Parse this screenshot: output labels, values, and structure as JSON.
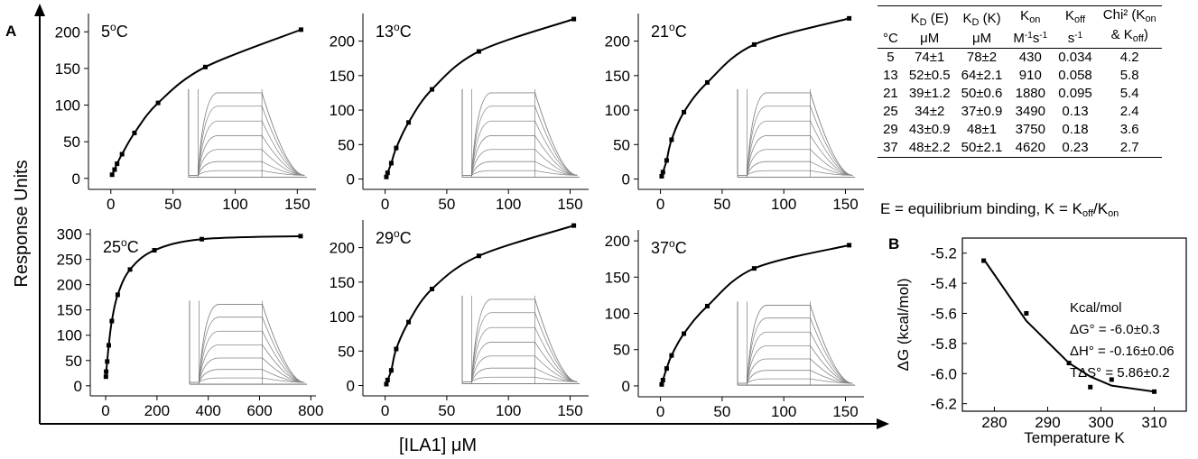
{
  "figure": {
    "panel_a_label": "A",
    "panel_b_label": "B",
    "y_axis_title": "Response Units",
    "x_axis_title": "[ILA1] μM"
  },
  "chart_data": [
    {
      "type": "scatter",
      "panel": "A",
      "label": "5°C",
      "temp_text": "5",
      "x": [
        1,
        3,
        5,
        9,
        19,
        38,
        76,
        153
      ],
      "y": [
        5,
        12,
        20,
        33,
        62,
        103,
        152,
        203
      ],
      "fit": "binding curve",
      "xticks": [
        0,
        50,
        100,
        150
      ],
      "yticks": [
        0,
        50,
        100,
        150,
        200
      ],
      "xlim": [
        -18,
        165
      ],
      "ylim": [
        -15,
        225
      ],
      "inset": "sensorgram"
    },
    {
      "type": "scatter",
      "panel": "A",
      "label": "13°C",
      "temp_text": "13",
      "x": [
        1,
        2,
        5,
        9,
        19,
        38,
        76,
        153
      ],
      "y": [
        3,
        9,
        23,
        45,
        82,
        130,
        185,
        232
      ],
      "fit": "binding curve",
      "xticks": [
        0,
        50,
        100,
        150
      ],
      "yticks": [
        0,
        50,
        100,
        150,
        200
      ],
      "xlim": [
        -18,
        165
      ],
      "ylim": [
        -15,
        240
      ],
      "inset": "sensorgram"
    },
    {
      "type": "scatter",
      "panel": "A",
      "label": "21°C",
      "temp_text": "21",
      "x": [
        1,
        2,
        5,
        9,
        19,
        38,
        76,
        153
      ],
      "y": [
        4,
        10,
        27,
        57,
        97,
        140,
        195,
        233
      ],
      "fit": "binding curve",
      "xticks": [
        0,
        50,
        100,
        150
      ],
      "yticks": [
        0,
        50,
        100,
        150,
        200
      ],
      "xlim": [
        -18,
        165
      ],
      "ylim": [
        -15,
        240
      ],
      "inset": "sensorgram"
    },
    {
      "type": "scatter",
      "panel": "A",
      "label": "25°C",
      "temp_text": "25",
      "x": [
        1,
        2,
        6,
        12,
        24,
        47,
        95,
        190,
        375,
        760
      ],
      "y": [
        18,
        28,
        48,
        80,
        128,
        180,
        230,
        268,
        290,
        296
      ],
      "fit": "binding curve",
      "xticks": [
        0,
        200,
        400,
        600,
        800
      ],
      "yticks": [
        0,
        50,
        100,
        150,
        200,
        250,
        300
      ],
      "xlim": [
        -60,
        820
      ],
      "ylim": [
        -20,
        310
      ],
      "inset": "sensorgram"
    },
    {
      "type": "scatter",
      "panel": "A",
      "label": "29°C",
      "temp_text": "29",
      "x": [
        1,
        2,
        5,
        9,
        19,
        38,
        76,
        153
      ],
      "y": [
        2,
        8,
        22,
        53,
        92,
        140,
        188,
        232
      ],
      "fit": "binding curve",
      "xticks": [
        0,
        50,
        100,
        150
      ],
      "yticks": [
        0,
        50,
        100,
        150,
        200
      ],
      "xlim": [
        -18,
        165
      ],
      "ylim": [
        -15,
        240
      ],
      "inset": "sensorgram"
    },
    {
      "type": "scatter",
      "panel": "A",
      "label": "37°C",
      "temp_text": "37",
      "x": [
        1,
        2,
        5,
        9,
        19,
        38,
        76,
        153
      ],
      "y": [
        2,
        8,
        24,
        42,
        72,
        110,
        162,
        194
      ],
      "fit": "binding curve",
      "xticks": [
        0,
        50,
        100,
        150
      ],
      "yticks": [
        0,
        50,
        100,
        150,
        200
      ],
      "xlim": [
        -18,
        165
      ],
      "ylim": [
        -15,
        215
      ],
      "inset": "sensorgram"
    },
    {
      "type": "scatter",
      "panel": "B",
      "x": [
        278,
        286,
        294,
        298,
        302,
        310
      ],
      "y": [
        -5.25,
        -5.6,
        -5.93,
        -6.09,
        -6.04,
        -6.12
      ],
      "fit_x": [
        278,
        286,
        294,
        298,
        302,
        310
      ],
      "fit_y": [
        -5.24,
        -5.65,
        -5.93,
        -6.02,
        -6.08,
        -6.12
      ],
      "xlabel": "Temperature K",
      "ylabel": "ΔG (kcal/mol)",
      "xticks": [
        280,
        290,
        300,
        310
      ],
      "yticks": [
        -5.2,
        -5.4,
        -5.6,
        -5.8,
        -6.0,
        -6.2
      ],
      "xlim": [
        274,
        316
      ],
      "ylim": [
        -6.25,
        -5.1
      ]
    }
  ],
  "thermo": {
    "title": "Kcal/mol",
    "dG": "ΔG° = -6.0±0.3",
    "dH": "ΔH° = -0.16±0.06",
    "TdS": "TΔS° = 5.86±0.2"
  },
  "table": {
    "headers": [
      {
        "top": "",
        "main": "°C",
        "sub": ""
      },
      {
        "top": "K",
        "topsub": "D",
        "topafter": " (E)",
        "main": "μM"
      },
      {
        "top": "K",
        "topsub": "D",
        "topafter": " (K)",
        "main": "μM"
      },
      {
        "top": "K",
        "topsub": "on",
        "topafter": "",
        "main": "M⁻¹s⁻¹"
      },
      {
        "top": "K",
        "topsub": "off",
        "topafter": "",
        "main": "s⁻¹"
      },
      {
        "top": "Chi² (K",
        "topsub": "on",
        "topafter": "",
        "main": "& K_off)"
      }
    ],
    "rows": [
      [
        "5",
        "74±1",
        "78±2",
        "430",
        "0.034",
        "4.2"
      ],
      [
        "13",
        "52±0.5",
        "64±2.1",
        "910",
        "0.058",
        "5.8"
      ],
      [
        "21",
        "39±1.2",
        "50±0.6",
        "1880",
        "0.095",
        "5.4"
      ],
      [
        "25",
        "34±2",
        "37±0.9",
        "3490",
        "0.13",
        "2.4"
      ],
      [
        "29",
        "43±0.9",
        "48±1",
        "3750",
        "0.18",
        "3.6"
      ],
      [
        "37",
        "48±2.2",
        "50±2.1",
        "4620",
        "0.23",
        "2.7"
      ]
    ],
    "footnote_main": "E = equilibrium binding, K = K",
    "footnote_sub1": "off",
    "footnote_mid": "/K",
    "footnote_sub2": "on"
  }
}
